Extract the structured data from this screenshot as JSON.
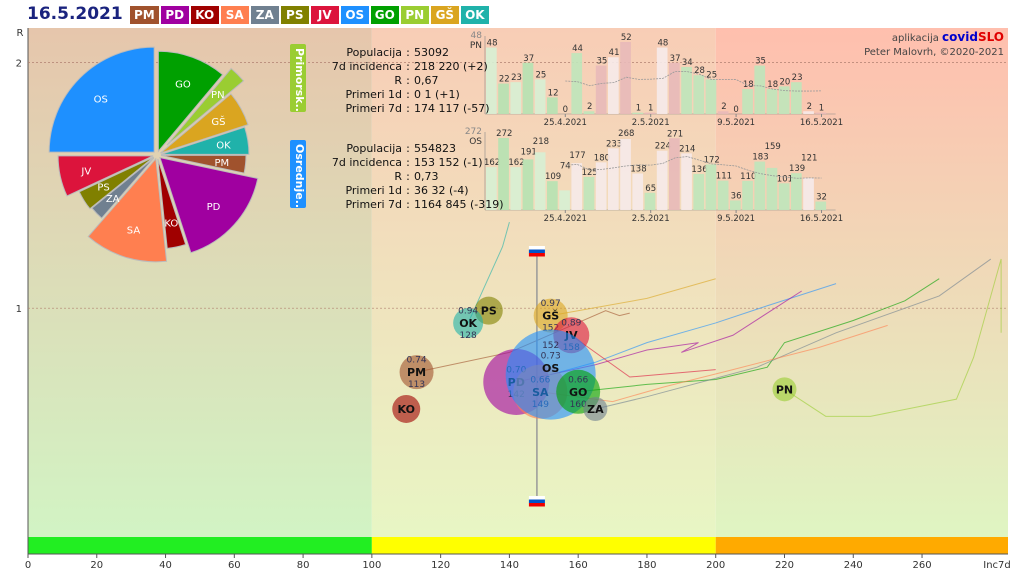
{
  "date": "16.5.2021",
  "credit": {
    "prefix": "aplikacija",
    "brand1": "covid",
    "brand2": "SLO",
    "author": "Peter Malovrh, ©2020-2021"
  },
  "regions": [
    {
      "code": "PM",
      "color": "#a0522d"
    },
    {
      "code": "PD",
      "color": "#a000a0"
    },
    {
      "code": "KO",
      "color": "#a00000"
    },
    {
      "code": "SA",
      "color": "#ff7f50"
    },
    {
      "code": "ZA",
      "color": "#708090"
    },
    {
      "code": "PS",
      "color": "#808000"
    },
    {
      "code": "JV",
      "color": "#dc143c"
    },
    {
      "code": "OS",
      "color": "#1e90ff"
    },
    {
      "code": "GO",
      "color": "#00a000"
    },
    {
      "code": "PN",
      "color": "#9acd32"
    },
    {
      "code": "GŠ",
      "color": "#daa520"
    },
    {
      "code": "OK",
      "color": "#20b2aa"
    }
  ],
  "panels": [
    {
      "tag": "Primorsk..",
      "code": "PN",
      "color": "#9acd32",
      "avg_label": "48",
      "rows": [
        [
          "Populacija",
          "53092"
        ],
        [
          "7d incidenca",
          "218 220 (+2)"
        ],
        [
          "R",
          "0,67"
        ],
        [
          "Primeri 1d",
          "0 1 (+1)"
        ],
        [
          "Primeri 7d",
          "174 117 (-57)"
        ]
      ],
      "bars": [
        48,
        22,
        23,
        37,
        25,
        12,
        0,
        44,
        2,
        35,
        41,
        52,
        1,
        1,
        48,
        37,
        34,
        28,
        25,
        2,
        0,
        18,
        35,
        18,
        20,
        23,
        2,
        1
      ]
    },
    {
      "tag": "Osrednje..",
      "code": "OS",
      "color": "#1e90ff",
      "avg_label": "272",
      "rows": [
        [
          "Populacija",
          "554823"
        ],
        [
          "7d incidenca",
          "153 152 (-1)"
        ],
        [
          "R",
          "0,73"
        ],
        [
          "Primeri 1d",
          "36 32 (-4)"
        ],
        [
          "Primeri 7d",
          "1164 845 (-319)"
        ]
      ],
      "bars": [
        162,
        272,
        162,
        191,
        218,
        109,
        74,
        177,
        125,
        180,
        233,
        268,
        138,
        65,
        224,
        271,
        214,
        136,
        172,
        111,
        36,
        110,
        183,
        159,
        101,
        139,
        121,
        32
      ]
    }
  ],
  "bar_date_ticks": [
    {
      "label": "25.4.2021",
      "index": 6
    },
    {
      "label": "2.5.2021",
      "index": 13
    },
    {
      "label": "9.5.2021",
      "index": 20
    },
    {
      "label": "16.5.2021",
      "index": 27
    }
  ],
  "chart_data": {
    "type": "scatter",
    "xlabel": "Inc7d",
    "ylabel": "R",
    "xlim": [
      0,
      285
    ],
    "ylim": [
      0,
      2.14
    ],
    "x_ticks": [
      0,
      20,
      40,
      60,
      80,
      100,
      120,
      140,
      160,
      180,
      200,
      220,
      240,
      260
    ],
    "y_ticks": [
      1,
      2
    ],
    "zones": [
      {
        "from": 0,
        "to": 100,
        "color": "#22ee22"
      },
      {
        "from": 100,
        "to": 200,
        "color": "#ffff00"
      },
      {
        "from": 200,
        "to": 285,
        "color": "#ffaa00"
      }
    ],
    "reference_x": 148,
    "points": [
      {
        "code": "PS",
        "x": 134,
        "r": 0.99,
        "size": 14,
        "show_values": false
      },
      {
        "code": "OK",
        "x": 128,
        "r": 0.94,
        "size": 15,
        "show_values": true
      },
      {
        "code": "GŠ",
        "x": 152,
        "r": 0.97,
        "size": 17,
        "show_values": true
      },
      {
        "code": "JV",
        "x": 158,
        "r": 0.89,
        "size": 18,
        "show_values": true
      },
      {
        "code": "PM",
        "x": 113,
        "r": 0.74,
        "size": 17,
        "show_values": true
      },
      {
        "code": "KO",
        "x": 110,
        "r": 0.59,
        "size": 14,
        "show_values": false
      },
      {
        "code": "PD",
        "x": 142,
        "r": 0.7,
        "size": 33,
        "show_values": true
      },
      {
        "code": "SA",
        "x": 149,
        "r": 0.66,
        "size": 27,
        "show_values": true
      },
      {
        "code": "OS",
        "x": 152,
        "r": 0.73,
        "size": 45,
        "show_values": true
      },
      {
        "code": "GO",
        "x": 160,
        "r": 0.66,
        "size": 22,
        "show_values": true
      },
      {
        "code": "ZA",
        "x": 165,
        "r": 0.59,
        "size": 12,
        "show_values": false
      },
      {
        "code": "PN",
        "x": 220,
        "r": 0.67,
        "size": 12,
        "show_values": false
      }
    ],
    "trails": [
      {
        "code": "OS",
        "pts": [
          [
            152,
            0.73
          ],
          [
            165,
            0.78
          ],
          [
            180,
            0.86
          ],
          [
            200,
            0.94
          ],
          [
            215,
            1.01
          ],
          [
            235,
            1.1
          ]
        ]
      },
      {
        "code": "PD",
        "pts": [
          [
            142,
            0.7
          ],
          [
            165,
            0.77
          ],
          [
            180,
            0.83
          ],
          [
            195,
            0.86
          ],
          [
            190,
            0.82
          ],
          [
            205,
            0.89
          ],
          [
            225,
            1.07
          ]
        ]
      },
      {
        "code": "GO",
        "pts": [
          [
            160,
            0.66
          ],
          [
            180,
            0.69
          ],
          [
            200,
            0.71
          ],
          [
            215,
            0.76
          ],
          [
            220,
            0.86
          ],
          [
            240,
            0.95
          ],
          [
            255,
            1.03
          ],
          [
            265,
            1.12
          ]
        ]
      },
      {
        "code": "PN",
        "pts": [
          [
            220,
            0.67
          ],
          [
            232,
            0.56
          ],
          [
            245,
            0.56
          ],
          [
            270,
            0.63
          ],
          [
            275,
            0.8
          ],
          [
            283,
            1.2
          ],
          [
            283,
            0.9
          ]
        ]
      },
      {
        "code": "ZA",
        "pts": [
          [
            165,
            0.59
          ],
          [
            180,
            0.64
          ],
          [
            212,
            0.76
          ],
          [
            235,
            0.9
          ],
          [
            265,
            1.05
          ],
          [
            280,
            1.2
          ]
        ]
      },
      {
        "code": "PM",
        "pts": [
          [
            113,
            0.74
          ],
          [
            140,
            0.82
          ],
          [
            168,
            0.99
          ],
          [
            172,
            0.97
          ],
          [
            175,
            0.98
          ]
        ]
      },
      {
        "code": "SA",
        "pts": [
          [
            149,
            0.66
          ],
          [
            170,
            0.62
          ],
          [
            185,
            0.68
          ],
          [
            205,
            0.75
          ],
          [
            230,
            0.84
          ],
          [
            250,
            0.93
          ]
        ]
      },
      {
        "code": "OK",
        "pts": [
          [
            128,
            0.94
          ],
          [
            138,
            1.25
          ],
          [
            140,
            1.35
          ]
        ]
      },
      {
        "code": "GŠ",
        "pts": [
          [
            152,
            0.97
          ],
          [
            180,
            1.04
          ],
          [
            200,
            1.12
          ]
        ]
      },
      {
        "code": "JV",
        "pts": [
          [
            158,
            0.89
          ],
          [
            175,
            0.72
          ],
          [
            200,
            0.75
          ]
        ]
      }
    ],
    "pie": [
      {
        "code": "GO",
        "share": 40
      },
      {
        "code": "PN",
        "share": 10
      },
      {
        "code": "GŠ",
        "share": 22
      },
      {
        "code": "OK",
        "share": 18
      },
      {
        "code": "PM",
        "share": 12
      },
      {
        "code": "PD",
        "share": 60
      },
      {
        "code": "KO",
        "share": 12
      },
      {
        "code": "SA",
        "share": 47
      },
      {
        "code": "ZA",
        "share": 10
      },
      {
        "code": "PS",
        "share": 14
      },
      {
        "code": "JV",
        "share": 25
      },
      {
        "code": "OS",
        "share": 90
      }
    ]
  }
}
